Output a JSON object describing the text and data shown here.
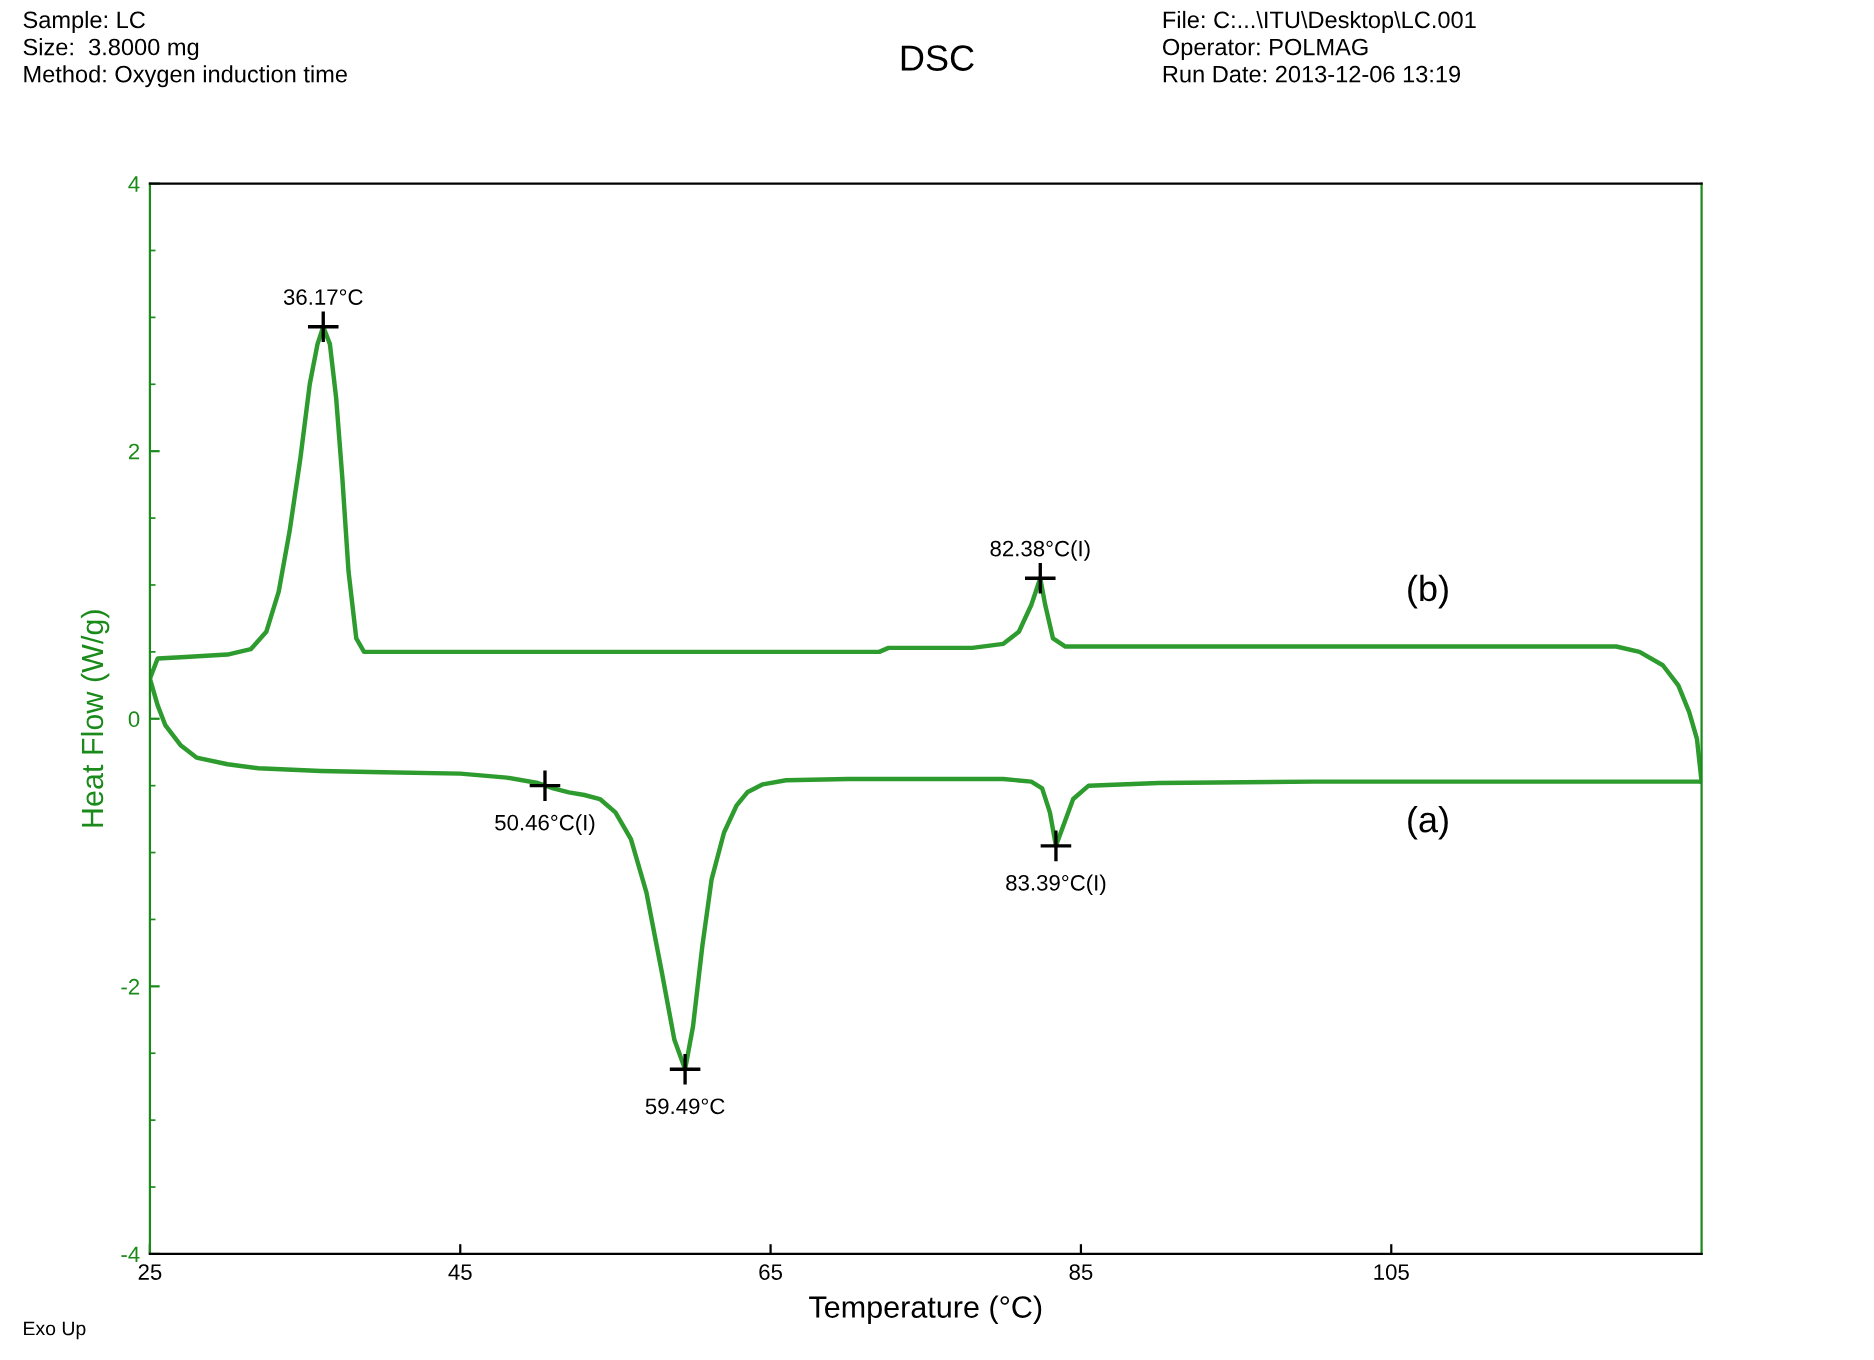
{
  "chart_data": {
    "type": "line",
    "title": "DSC",
    "xlabel": "Temperature (°C)",
    "ylabel": "Heat Flow (W/g)",
    "xlim": [
      25,
      125
    ],
    "ylim": [
      -4,
      4
    ],
    "xticks": [
      25,
      45,
      65,
      85,
      105
    ],
    "yticks": [
      -4,
      -2,
      0,
      2,
      4
    ],
    "grid": false,
    "legend": false,
    "marker": "none",
    "line_style": "solid",
    "series": [
      {
        "color": "#2e9b2e",
        "x": [
          25,
          25.5,
          26,
          27,
          28,
          30,
          32,
          36,
          40,
          45,
          48,
          50,
          51,
          52,
          53,
          54,
          55,
          56,
          57,
          58,
          58.8,
          59.49,
          60,
          60.6,
          61.2,
          62,
          62.8,
          63.5,
          64.5,
          66,
          70,
          75,
          80,
          81.8,
          82.5,
          83,
          83.39,
          83.8,
          84.5,
          85.5,
          90,
          100,
          110,
          120,
          125
        ],
        "values": [
          0.3,
          0.1,
          -0.05,
          -0.2,
          -0.29,
          -0.34,
          -0.37,
          -0.39,
          -0.4,
          -0.41,
          -0.44,
          -0.48,
          -0.52,
          -0.55,
          -0.57,
          -0.6,
          -0.7,
          -0.9,
          -1.3,
          -1.9,
          -2.4,
          -2.62,
          -2.3,
          -1.7,
          -1.2,
          -0.85,
          -0.65,
          -0.55,
          -0.49,
          -0.46,
          -0.45,
          -0.45,
          -0.45,
          -0.47,
          -0.52,
          -0.7,
          -0.95,
          -0.82,
          -0.6,
          -0.5,
          -0.48,
          -0.47,
          -0.47,
          -0.47,
          -0.47
        ]
      },
      {
        "color": "#2e9b2e",
        "x": [
          25,
          25.5,
          27,
          30,
          31.5,
          32.5,
          33.3,
          34,
          34.7,
          35.3,
          35.8,
          36.17,
          36.6,
          37,
          37.4,
          37.8,
          38.3,
          38.8,
          45,
          60,
          72,
          72.6,
          78,
          80,
          81,
          81.8,
          82.38,
          82.7,
          83.2,
          84,
          90,
          100,
          110,
          119.5,
          121,
          122.5,
          123.5,
          124.2,
          124.7,
          125
        ],
        "values": [
          0.3,
          0.45,
          0.46,
          0.48,
          0.52,
          0.65,
          0.95,
          1.4,
          1.95,
          2.5,
          2.8,
          2.93,
          2.8,
          2.4,
          1.8,
          1.1,
          0.6,
          0.5,
          0.5,
          0.5,
          0.5,
          0.53,
          0.53,
          0.56,
          0.65,
          0.85,
          1.05,
          0.85,
          0.6,
          0.54,
          0.54,
          0.54,
          0.54,
          0.54,
          0.5,
          0.4,
          0.25,
          0.05,
          -0.15,
          -0.47
        ]
      }
    ],
    "annotations": [
      {
        "text": "36.17°C",
        "x": 36.17,
        "y": 2.93
      },
      {
        "text": "82.38°C(I)",
        "x": 82.38,
        "y": 1.05
      },
      {
        "text": "50.46°C(I)",
        "x": 50.46,
        "y": -0.5
      },
      {
        "text": "59.49°C",
        "x": 59.49,
        "y": -2.62
      },
      {
        "text": "83.39°C(I)",
        "x": 83.39,
        "y": -0.95
      },
      "(b)",
      "(a)",
      "Sample: LC\nSize:  3.8000 mg\nMethod: Oxygen induction time",
      "File: C:...\\ITU\\Desktop\\LC.001\nOperator: POLMAG\nRun Date: 2013-12-06 13:19",
      "Exo Up"
    ]
  }
}
